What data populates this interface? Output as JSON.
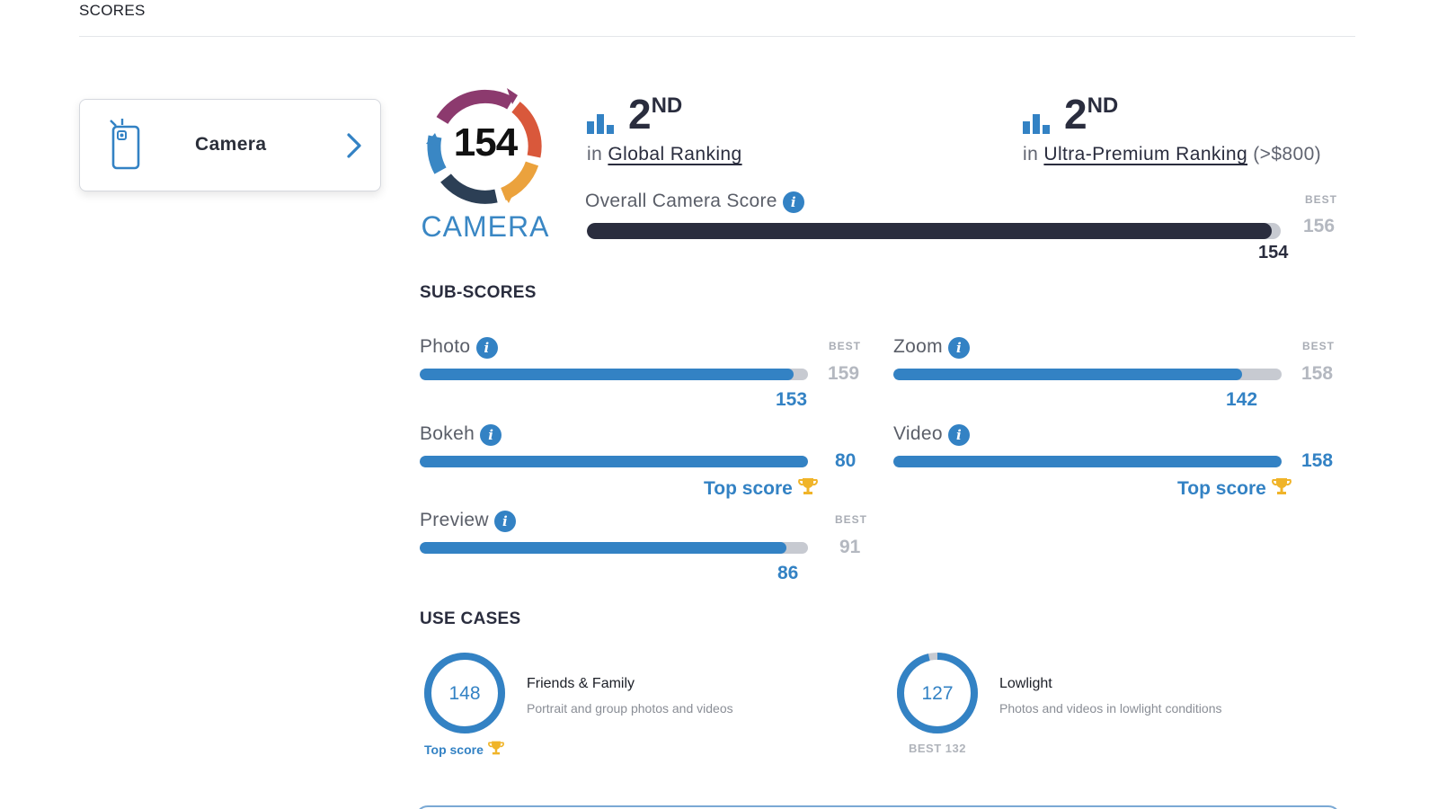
{
  "page": {
    "title": "SCORES"
  },
  "category_card": {
    "label": "Camera",
    "icon": "phone-camera-icon",
    "arrow": "chevron-right-icon"
  },
  "badge": {
    "score": "154",
    "label": "CAMERA"
  },
  "rankings": [
    {
      "rank": "2",
      "suffix": "ND",
      "prefix": "in",
      "link": "Global Ranking",
      "extra": ""
    },
    {
      "rank": "2",
      "suffix": "ND",
      "prefix": "in",
      "link": "Ultra-Premium Ranking",
      "extra": "(>$800)"
    }
  ],
  "overall": {
    "label": "Overall Camera Score",
    "value": "154",
    "best_label": "BEST",
    "best": "156",
    "score": 154,
    "max": 156
  },
  "sub_scores": {
    "title": "SUB-SCORES",
    "items": [
      {
        "label": "Photo",
        "value": "153",
        "best_label": "BEST",
        "best": "159",
        "score": 153,
        "max": 159,
        "top": false
      },
      {
        "label": "Zoom",
        "value": "142",
        "best_label": "BEST",
        "best": "158",
        "score": 142,
        "max": 158,
        "top": false
      },
      {
        "label": "Bokeh",
        "value": "80",
        "top_label": "Top score",
        "score": 80,
        "max": 80,
        "top": true
      },
      {
        "label": "Video",
        "value": "158",
        "top_label": "Top score",
        "score": 158,
        "max": 158,
        "top": true
      },
      {
        "label": "Preview",
        "value": "86",
        "best_label": "BEST",
        "best": "91",
        "score": 86,
        "max": 91,
        "top": false
      }
    ]
  },
  "use_cases": {
    "title": "USE CASES",
    "items": [
      {
        "value": "148",
        "title": "Friends & Family",
        "desc": "Portrait and group photos and videos",
        "footer": "Top score",
        "score": 148,
        "max": 148,
        "top": true
      },
      {
        "value": "127",
        "title": "Lowlight",
        "desc": "Photos and videos in lowlight conditions",
        "footer": "BEST 132",
        "score": 127,
        "max": 132,
        "top": false
      }
    ]
  },
  "colors": {
    "accent": "#3382c4",
    "dark": "#2a2d3e",
    "track": "#c7cad1",
    "trophy": "#f0b429"
  }
}
